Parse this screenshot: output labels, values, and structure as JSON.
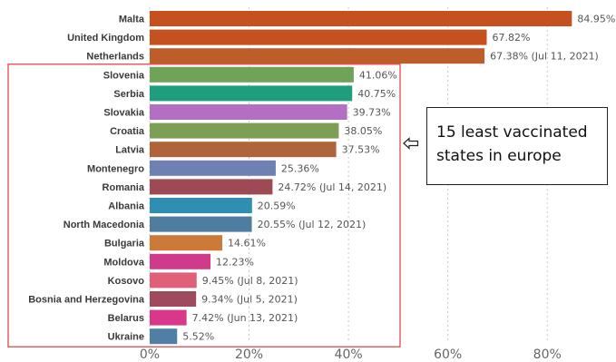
{
  "chart_data": {
    "type": "bar",
    "orientation": "horizontal",
    "categories": [
      "Malta",
      "United Kingdom",
      "Netherlands",
      "Slovenia",
      "Serbia",
      "Slovakia",
      "Croatia",
      "Latvia",
      "Montenegro",
      "Romania",
      "Albania",
      "North Macedonia",
      "Bulgaria",
      "Moldova",
      "Kosovo",
      "Bosnia and Herzegovina",
      "Belarus",
      "Ukraine"
    ],
    "values": [
      84.95,
      67.82,
      67.38,
      41.06,
      40.75,
      39.73,
      38.05,
      37.53,
      25.36,
      24.72,
      20.59,
      20.55,
      14.61,
      12.23,
      9.45,
      9.34,
      7.42,
      5.52
    ],
    "value_labels": [
      "84.95%",
      "67.82%",
      "67.38% (Jul 11, 2021)",
      "41.06%",
      "40.75%",
      "39.73%",
      "38.05%",
      "37.53%",
      "25.36%",
      "24.72% (Jul 14, 2021)",
      "20.59%",
      "20.55% (Jul 12, 2021)",
      "14.61%",
      "12.23%",
      "9.45% (Jul 8, 2021)",
      "9.34% (Jul 5, 2021)",
      "7.42% (Jun 13, 2021)",
      "5.52%"
    ],
    "colors": [
      "#c4511f",
      "#c4511f",
      "#bd5d2a",
      "#6fa357",
      "#1f9e7d",
      "#b36fc4",
      "#7d9e55",
      "#b0643a",
      "#6f80b3",
      "#9e4a55",
      "#2f8fb3",
      "#4f7da0",
      "#cd7a38",
      "#cf3a8a",
      "#e0607a",
      "#a04a5e",
      "#d9388a",
      "#4f7fa5"
    ],
    "xlim": [
      0,
      90
    ],
    "xticks": [
      0,
      20,
      40,
      60,
      80
    ],
    "xtick_labels": [
      "0%",
      "20%",
      "40%",
      "60%",
      "80%"
    ],
    "grid": "vertical dotted",
    "title": "",
    "xlabel": "",
    "ylabel": "",
    "highlight_group": [
      "Slovenia",
      "Serbia",
      "Slovakia",
      "Croatia",
      "Latvia",
      "Montenegro",
      "Romania",
      "Albania",
      "North Macedonia",
      "Bulgaria",
      "Moldova",
      "Kosovo",
      "Bosnia and Herzegovina",
      "Belarus",
      "Ukraine"
    ],
    "highlight_color": "#e0373d"
  },
  "annotation": {
    "line1": "15 least vaccinated",
    "line2": "states in europe"
  }
}
